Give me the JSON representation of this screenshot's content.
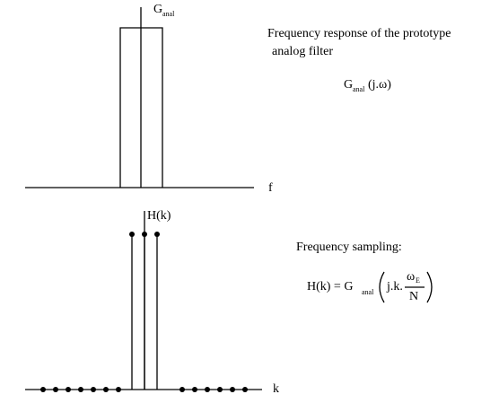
{
  "top_plot": {
    "axis_label": "G",
    "axis_label_sub": "anal",
    "x_label": "f"
  },
  "top_text": {
    "line1": "Frequency response of the prototype",
    "line2": "analog filter",
    "formula_main": "G",
    "formula_sub": "anal",
    "formula_arg": "(j.ω)"
  },
  "bottom_plot": {
    "axis_label": "H(k)",
    "x_label": "k"
  },
  "bottom_text": {
    "heading": "Frequency sampling:",
    "formula_lhs": "H(k) = G",
    "formula_sub": "anal",
    "formula_arg": "j.k.",
    "frac_num": "ω",
    "frac_num_sub": "E",
    "frac_den": "N"
  }
}
